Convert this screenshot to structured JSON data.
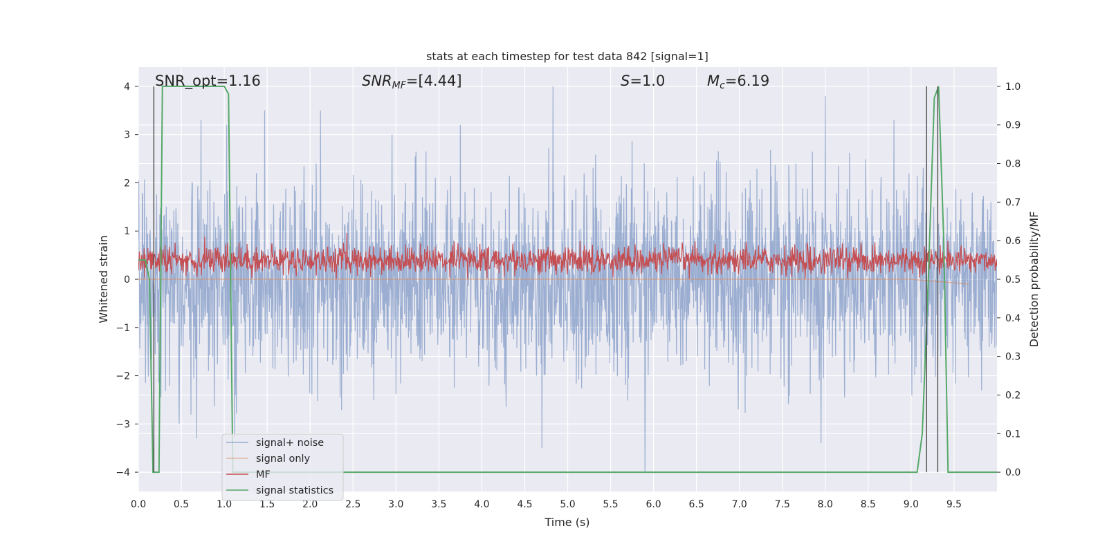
{
  "chart_data": {
    "type": "line",
    "title": "stats at each timestep for test data 842 [signal=1]",
    "xlabel": "Time (s)",
    "ylabel": "Whitened strain",
    "y2label": "Detection probability/MF",
    "xlim": [
      0.0,
      10.0
    ],
    "ylim": [
      -4.4,
      4.4
    ],
    "y2lim": [
      -0.05,
      1.05
    ],
    "grid": true,
    "legend_position": "lower-left",
    "x_ticks": [
      "0.0",
      "0.5",
      "1.0",
      "1.5",
      "2.0",
      "2.5",
      "3.0",
      "3.5",
      "4.0",
      "4.5",
      "5.0",
      "5.5",
      "6.0",
      "6.5",
      "7.0",
      "7.5",
      "8.0",
      "8.5",
      "9.0",
      "9.5"
    ],
    "x_tick_values": [
      0.0,
      0.5,
      1.0,
      1.5,
      2.0,
      2.5,
      3.0,
      3.5,
      4.0,
      4.5,
      5.0,
      5.5,
      6.0,
      6.5,
      7.0,
      7.5,
      8.0,
      8.5,
      9.0,
      9.5
    ],
    "y_ticks": [
      "−4",
      "−3",
      "−2",
      "−1",
      "0",
      "1",
      "2",
      "3",
      "4"
    ],
    "y_tick_values": [
      -4,
      -3,
      -2,
      -1,
      0,
      1,
      2,
      3,
      4
    ],
    "y2_ticks": [
      "0.0",
      "0.1",
      "0.2",
      "0.3",
      "0.4",
      "0.5",
      "0.6",
      "0.7",
      "0.8",
      "0.9",
      "1.0"
    ],
    "y2_tick_values": [
      0.0,
      0.1,
      0.2,
      0.3,
      0.4,
      0.5,
      0.6,
      0.7,
      0.8,
      0.9,
      1.0
    ],
    "annotations": {
      "snr_opt": "SNR_opt=1.16",
      "snr_mf_label": "SNR",
      "snr_mf_sub": "MF",
      "snr_mf_value": "=[4.44]",
      "s_label": "S",
      "s_value": "=1.0",
      "mc_label": "M",
      "mc_sub": "c",
      "mc_value": "=6.19"
    },
    "series": [
      {
        "name": "signal+ noise",
        "axis": "left",
        "color": "#4c72b0",
        "description_envelope": {
          "x": [
            0.0,
            10.0
          ],
          "typical_range": [
            -1.9,
            1.9
          ],
          "max_peak": 4.0,
          "min_peak": -4.0
        },
        "peaks": [
          {
            "x": 0.73,
            "y": 3.3
          },
          {
            "x": 1.03,
            "y": 3.2
          },
          {
            "x": 1.47,
            "y": 3.5
          },
          {
            "x": 2.12,
            "y": 3.5
          },
          {
            "x": 3.75,
            "y": 3.2
          },
          {
            "x": 4.83,
            "y": 4.0
          },
          {
            "x": 8.0,
            "y": 3.8
          },
          {
            "x": 8.8,
            "y": 3.3
          },
          {
            "x": 0.68,
            "y": -3.3
          },
          {
            "x": 1.12,
            "y": -3.3
          },
          {
            "x": 4.7,
            "y": -3.5
          },
          {
            "x": 5.9,
            "y": -4.0
          },
          {
            "x": 7.95,
            "y": -3.4
          }
        ]
      },
      {
        "name": "signal only",
        "axis": "left",
        "color": "#dd8452",
        "x": [
          0.0,
          0.5,
          1.0,
          2.0,
          3.0,
          4.0,
          5.0,
          6.0,
          7.0,
          8.0,
          9.0,
          9.2,
          9.4,
          9.67
        ],
        "y": [
          0.0,
          0.0,
          0.0,
          0.0,
          0.0,
          0.0,
          0.0,
          0.0,
          0.0,
          0.0,
          0.0,
          -0.03,
          -0.06,
          -0.1
        ]
      },
      {
        "name": "MF",
        "axis": "right",
        "color": "#c44e52",
        "description_band": {
          "x": [
            0.0,
            10.0
          ],
          "center": 0.55,
          "low": 0.5,
          "high": 0.6
        },
        "peaks": [
          {
            "x": 0.77,
            "y": 0.61
          },
          {
            "x": 2.43,
            "y": 0.62
          }
        ]
      },
      {
        "name": "signal statistics",
        "axis": "right",
        "color": "#55a868",
        "x": [
          0.0,
          0.08,
          0.13,
          0.17,
          0.24,
          0.28,
          0.5,
          1.0,
          1.05,
          1.1,
          1.15,
          9.0,
          9.07,
          9.13,
          9.2,
          9.27,
          9.32,
          9.38,
          9.43,
          9.5,
          10.0
        ],
        "y": [
          0.55,
          0.55,
          0.5,
          0.0,
          0.0,
          1.0,
          1.0,
          1.0,
          0.98,
          0.0,
          0.0,
          0.0,
          0.0,
          0.1,
          0.5,
          0.97,
          1.0,
          0.6,
          0.0,
          0.0,
          0.0
        ]
      }
    ],
    "vlines": [
      {
        "x": 0.18,
        "color": "#555555"
      },
      {
        "x": 9.18,
        "color": "#555555"
      },
      {
        "x": 9.31,
        "color": "#555555"
      }
    ]
  }
}
